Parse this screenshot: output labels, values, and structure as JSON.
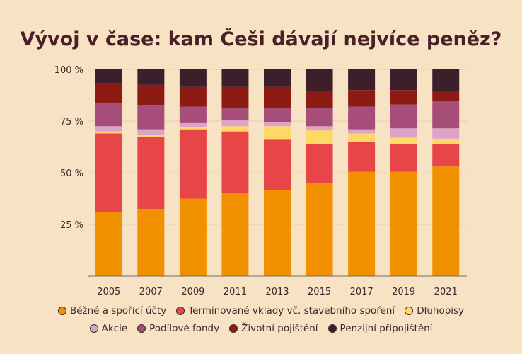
{
  "chart_data": {
    "type": "bar",
    "stacked": true,
    "title": "Vývoj v čase: kam Češi dávají nejvíce peněz?",
    "xlabel": "",
    "ylabel": "",
    "categories": [
      "2005",
      "2007",
      "2009",
      "2011",
      "2013",
      "2015",
      "2017",
      "2019",
      "2021"
    ],
    "ylim": [
      0,
      100
    ],
    "yticks": [
      25,
      50,
      75,
      100
    ],
    "ytick_labels": [
      "25 %",
      "50 %",
      "75 %",
      "100 %"
    ],
    "grid": true,
    "legend_position": "bottom",
    "series": [
      {
        "name": "Běžné a spořicí účty",
        "color": "#f29100",
        "values": [
          31,
          32.5,
          37.5,
          40,
          41.5,
          45,
          50.5,
          50.5,
          53
        ]
      },
      {
        "name": "Termínované vklady vč. stavebního spoření",
        "color": "#e84548",
        "values": [
          38,
          35,
          33.5,
          30,
          24.5,
          19,
          14.5,
          13.5,
          11
        ]
      },
      {
        "name": "Dluhopisy",
        "color": "#ffd966",
        "values": [
          1,
          1,
          1,
          2.5,
          6.5,
          6.5,
          4,
          3,
          2.5
        ]
      },
      {
        "name": "Akcie",
        "color": "#dca4c8",
        "values": [
          2.5,
          2.5,
          2,
          3,
          2,
          2,
          2,
          4.5,
          5
        ]
      },
      {
        "name": "Podílové fondy",
        "color": "#a64d79",
        "values": [
          11,
          11.5,
          8,
          6,
          7,
          9,
          11,
          11.5,
          13
        ]
      },
      {
        "name": "Životní pojištění",
        "color": "#8c1c13",
        "values": [
          10,
          10,
          9.5,
          10,
          10,
          8,
          8,
          7,
          5
        ]
      },
      {
        "name": "Penzijní připojištění",
        "color": "#3d1f2b",
        "values": [
          6.5,
          7.5,
          8.5,
          8.5,
          8.5,
          10.5,
          10,
          10,
          10.5
        ]
      }
    ]
  }
}
